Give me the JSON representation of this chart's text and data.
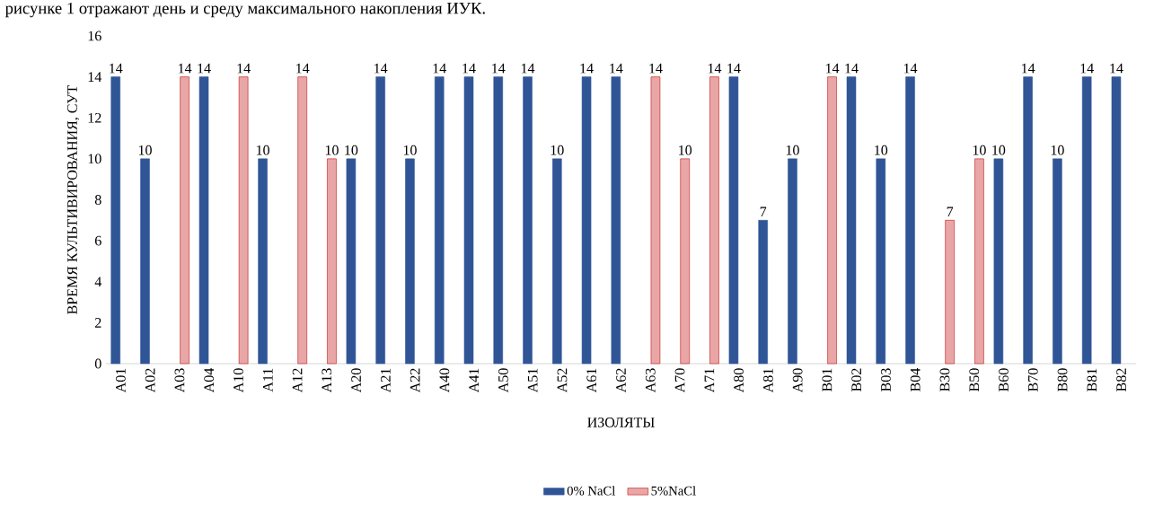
{
  "chart_data": {
    "type": "bar",
    "annotations": [
      "рисунке 1 отражают день и среду максимального накопления ИУК."
    ],
    "xlabel": "ИЗОЛЯТЫ",
    "ylabel": "ВРЕМЯ КУЛЬТИВИРОВАНИЯ, СУТ",
    "categories": [
      "A01",
      "A02",
      "A03",
      "A04",
      "A10",
      "A11",
      "A12",
      "A13",
      "A20",
      "A21",
      "A22",
      "A40",
      "A41",
      "A50",
      "A51",
      "A52",
      "A61",
      "A62",
      "A63",
      "A70",
      "A71",
      "A80",
      "A81",
      "A90",
      "B01",
      "B02",
      "B03",
      "B04",
      "B30",
      "B50",
      "B60",
      "B70",
      "B80",
      "B81",
      "B82"
    ],
    "series": [
      {
        "name": "0% NaCl",
        "color": "#2f5597",
        "values": [
          14,
          10,
          null,
          14,
          null,
          10,
          null,
          null,
          10,
          14,
          10,
          14,
          14,
          14,
          14,
          10,
          14,
          14,
          null,
          null,
          null,
          14,
          7,
          10,
          null,
          14,
          10,
          14,
          null,
          null,
          10,
          14,
          10,
          14,
          14
        ]
      },
      {
        "name": "5%NaCl",
        "color": "#c00000",
        "values": [
          null,
          null,
          14,
          null,
          14,
          null,
          14,
          10,
          null,
          null,
          null,
          null,
          null,
          null,
          null,
          null,
          null,
          null,
          14,
          10,
          14,
          null,
          null,
          null,
          14,
          null,
          null,
          null,
          7,
          10,
          null,
          null,
          null,
          null,
          null
        ]
      }
    ],
    "ylim": [
      0,
      16
    ],
    "yticks": [
      0,
      2,
      4,
      6,
      8,
      10,
      12,
      14,
      16
    ],
    "data_labels": true,
    "legend": "bottom"
  }
}
